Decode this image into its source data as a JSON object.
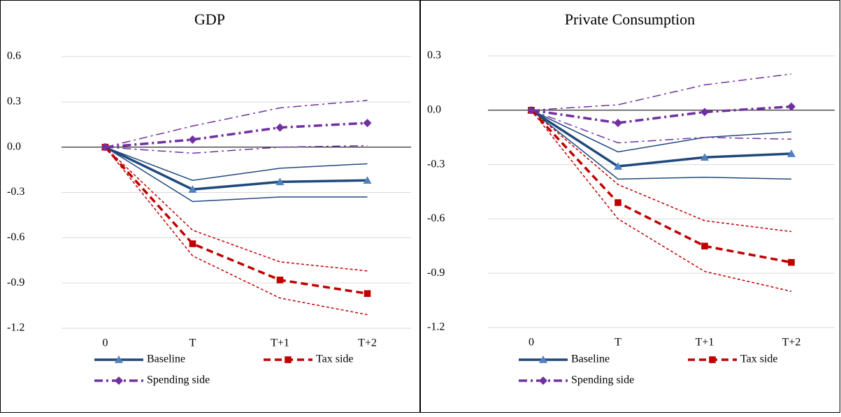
{
  "chart_data": [
    {
      "type": "line",
      "title": "GDP",
      "categories": [
        "0",
        "T",
        "T+1",
        "T+2"
      ],
      "ylim": [
        -1.2,
        0.6
      ],
      "yticks": [
        {
          "value": -1.2,
          "label": "-1.2"
        },
        {
          "value": -0.9,
          "label": "-0.9"
        },
        {
          "value": -0.6,
          "label": "-0.6"
        },
        {
          "value": -0.3,
          "label": "-0.3"
        },
        {
          "value": 0,
          "label": "0.0"
        },
        {
          "value": 0.3,
          "label": "0.3"
        },
        {
          "value": 0.6,
          "label": "0.6"
        }
      ],
      "grid": true,
      "series": [
        {
          "name": "Baseline",
          "color": "#1f497d",
          "marker": "triangle",
          "dash": "solid",
          "values": [
            0,
            -0.28,
            -0.23,
            -0.22
          ],
          "bands": {
            "upper": [
              0,
              -0.22,
              -0.14,
              -0.11
            ],
            "lower": [
              0,
              -0.36,
              -0.33,
              -0.33
            ]
          }
        },
        {
          "name": "Tax side",
          "color": "#c00000",
          "marker": "square",
          "dash": "dash",
          "values": [
            0,
            -0.64,
            -0.88,
            -0.97
          ],
          "bands": {
            "upper": [
              0,
              -0.55,
              -0.76,
              -0.82
            ],
            "lower": [
              0,
              -0.72,
              -1.0,
              -1.11
            ]
          }
        },
        {
          "name": "Spending side",
          "color": "#7030a0",
          "marker": "diamond",
          "dash": "dashdot",
          "values": [
            0,
            0.05,
            0.13,
            0.16
          ],
          "bands": {
            "upper": [
              0,
              0.14,
              0.26,
              0.31
            ],
            "lower": [
              0,
              -0.04,
              0.0,
              0.01
            ]
          }
        }
      ]
    },
    {
      "type": "line",
      "title": "Private Consumption",
      "categories": [
        "0",
        "T",
        "T+1",
        "T+2"
      ],
      "ylim": [
        -1.2,
        0.3
      ],
      "yticks": [
        {
          "value": -1.2,
          "label": "-1.2"
        },
        {
          "value": -0.9,
          "label": "-0.9"
        },
        {
          "value": -0.6,
          "label": "-0.6"
        },
        {
          "value": -0.3,
          "label": "-0.3"
        },
        {
          "value": 0,
          "label": "0.0"
        },
        {
          "value": 0.3,
          "label": "0.3"
        }
      ],
      "grid": true,
      "series": [
        {
          "name": "Baseline",
          "color": "#1f497d",
          "marker": "triangle",
          "dash": "solid",
          "values": [
            0,
            -0.31,
            -0.26,
            -0.24
          ],
          "bands": {
            "upper": [
              0,
              -0.23,
              -0.15,
              -0.12
            ],
            "lower": [
              0,
              -0.38,
              -0.37,
              -0.38
            ]
          }
        },
        {
          "name": "Tax side",
          "color": "#c00000",
          "marker": "square",
          "dash": "dash",
          "values": [
            0,
            -0.51,
            -0.75,
            -0.84
          ],
          "bands": {
            "upper": [
              0,
              -0.41,
              -0.61,
              -0.67
            ],
            "lower": [
              0,
              -0.6,
              -0.89,
              -1.0
            ]
          }
        },
        {
          "name": "Spending side",
          "color": "#7030a0",
          "marker": "diamond",
          "dash": "dashdot",
          "values": [
            0,
            -0.07,
            -0.01,
            0.02
          ],
          "bands": {
            "upper": [
              0,
              0.03,
              0.14,
              0.2
            ],
            "lower": [
              0,
              -0.18,
              -0.15,
              -0.16
            ]
          }
        }
      ]
    }
  ]
}
